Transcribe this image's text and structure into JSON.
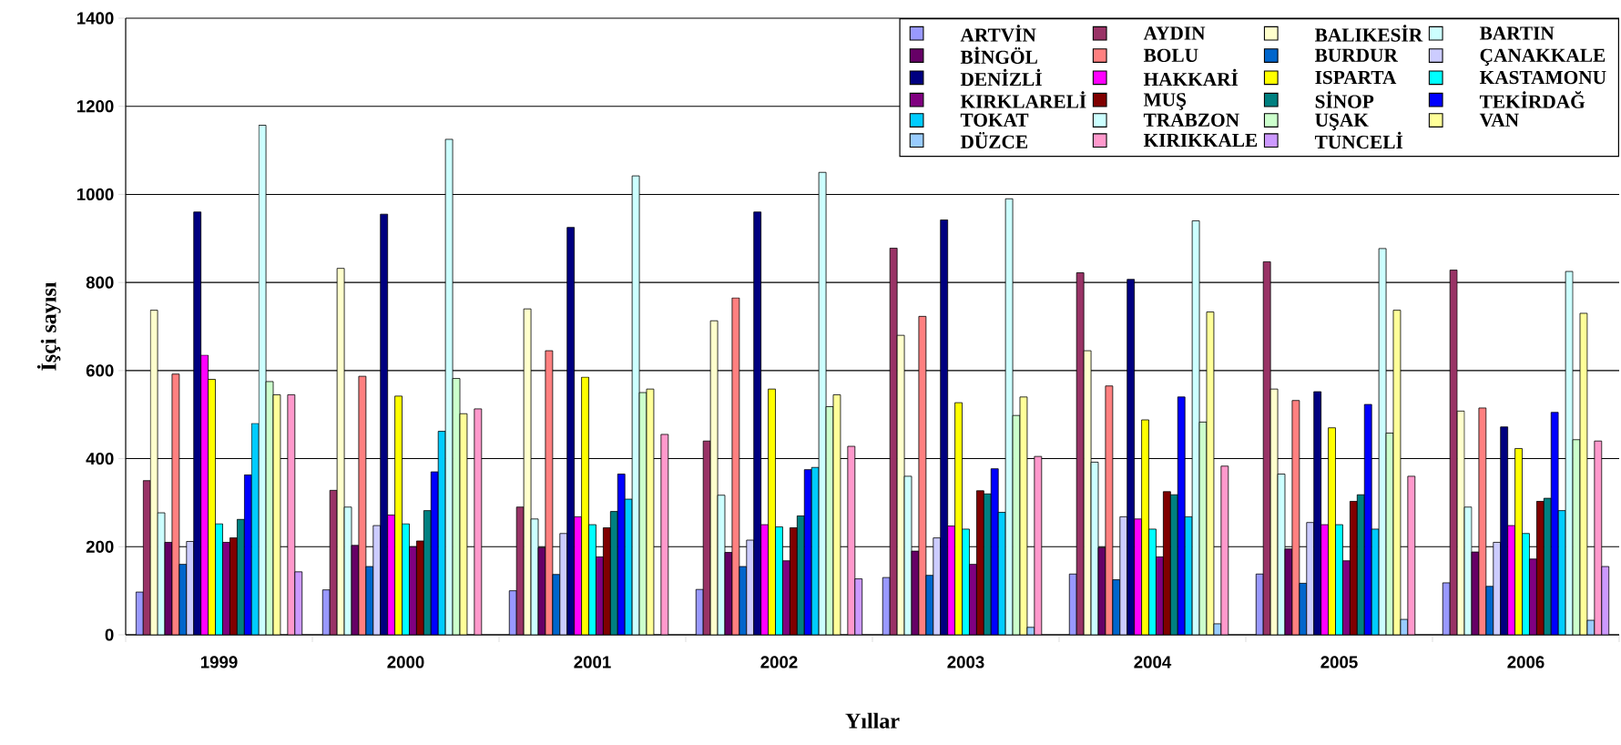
{
  "chart_data": {
    "type": "bar",
    "xlabel": "Yıllar",
    "ylabel": "İşçi sayısı",
    "categories": [
      "1999",
      "2000",
      "2001",
      "2002",
      "2003",
      "2004",
      "2005",
      "2006"
    ],
    "ylim": [
      0,
      1400
    ],
    "yticks": [
      0,
      200,
      400,
      600,
      800,
      1000,
      1200,
      1400
    ],
    "grid": "y",
    "legend": "top right",
    "series": [
      {
        "name": "ARTVİN",
        "color": "#9999ff",
        "values": [
          97,
          102,
          100,
          103,
          130,
          138,
          138,
          118
        ]
      },
      {
        "name": "AYDIN",
        "color": "#993366",
        "values": [
          350,
          328,
          290,
          440,
          878,
          822,
          847,
          828
        ]
      },
      {
        "name": "BALIKESİR",
        "color": "#ffffcc",
        "values": [
          737,
          832,
          740,
          713,
          680,
          645,
          558,
          508
        ]
      },
      {
        "name": "BARTIN",
        "color": "#ccffff",
        "values": [
          277,
          290,
          263,
          317,
          360,
          392,
          365,
          290
        ]
      },
      {
        "name": "BİNGÖL",
        "color": "#660066",
        "values": [
          210,
          203,
          198,
          187,
          190,
          198,
          195,
          188
        ]
      },
      {
        "name": "BOLU",
        "color": "#ff8080",
        "values": [
          592,
          587,
          645,
          765,
          723,
          565,
          532,
          515
        ]
      },
      {
        "name": "BURDUR",
        "color": "#0066cc",
        "values": [
          160,
          155,
          137,
          155,
          135,
          125,
          117,
          110
        ]
      },
      {
        "name": "ÇANAKKALE",
        "color": "#ccccff",
        "values": [
          212,
          248,
          230,
          215,
          220,
          268,
          255,
          210
        ]
      },
      {
        "name": "DENİZLİ",
        "color": "#000080",
        "values": [
          960,
          955,
          925,
          960,
          942,
          807,
          552,
          472
        ]
      },
      {
        "name": "HAKKARİ",
        "color": "#ff00ff",
        "values": [
          635,
          272,
          268,
          250,
          247,
          263,
          250,
          248
        ]
      },
      {
        "name": "ISPARTA",
        "color": "#ffff00",
        "values": [
          580,
          542,
          585,
          558,
          527,
          488,
          470,
          423
        ]
      },
      {
        "name": "KASTAMONU",
        "color": "#00ffff",
        "values": [
          252,
          252,
          250,
          245,
          240,
          240,
          250,
          230
        ]
      },
      {
        "name": "KIRKLARELİ",
        "color": "#800080",
        "values": [
          210,
          200,
          177,
          168,
          160,
          177,
          168,
          172
        ]
      },
      {
        "name": "MUŞ",
        "color": "#800000",
        "values": [
          220,
          213,
          243,
          243,
          327,
          325,
          303,
          303
        ]
      },
      {
        "name": "SİNOP",
        "color": "#008080",
        "values": [
          262,
          282,
          280,
          270,
          320,
          318,
          318,
          310
        ]
      },
      {
        "name": "TEKİRDAĞ",
        "color": "#0000ff",
        "values": [
          363,
          370,
          365,
          375,
          377,
          540,
          523,
          505
        ]
      },
      {
        "name": "TOKAT",
        "color": "#00ccff",
        "values": [
          480,
          462,
          308,
          380,
          278,
          268,
          240,
          282
        ]
      },
      {
        "name": "TRABZON",
        "color": "#ccffff",
        "values": [
          1157,
          1125,
          1042,
          1050,
          990,
          940,
          877,
          825
        ]
      },
      {
        "name": "UŞAK",
        "color": "#ccffcc",
        "values": [
          575,
          582,
          550,
          518,
          498,
          483,
          458,
          443
        ]
      },
      {
        "name": "VAN",
        "color": "#ffff99",
        "values": [
          545,
          502,
          558,
          545,
          540,
          733,
          737,
          730
        ]
      },
      {
        "name": "DÜZCE",
        "color": "#99ccff",
        "values": [
          null,
          null,
          null,
          null,
          17,
          25,
          35,
          33
        ]
      },
      {
        "name": "KIRIKKALE",
        "color": "#ff99cc",
        "values": [
          545,
          513,
          455,
          428,
          405,
          383,
          360,
          440
        ]
      },
      {
        "name": "TUNCELİ",
        "color": "#cc99ff",
        "values": [
          143,
          null,
          null,
          127,
          null,
          null,
          null,
          155
        ]
      }
    ]
  }
}
